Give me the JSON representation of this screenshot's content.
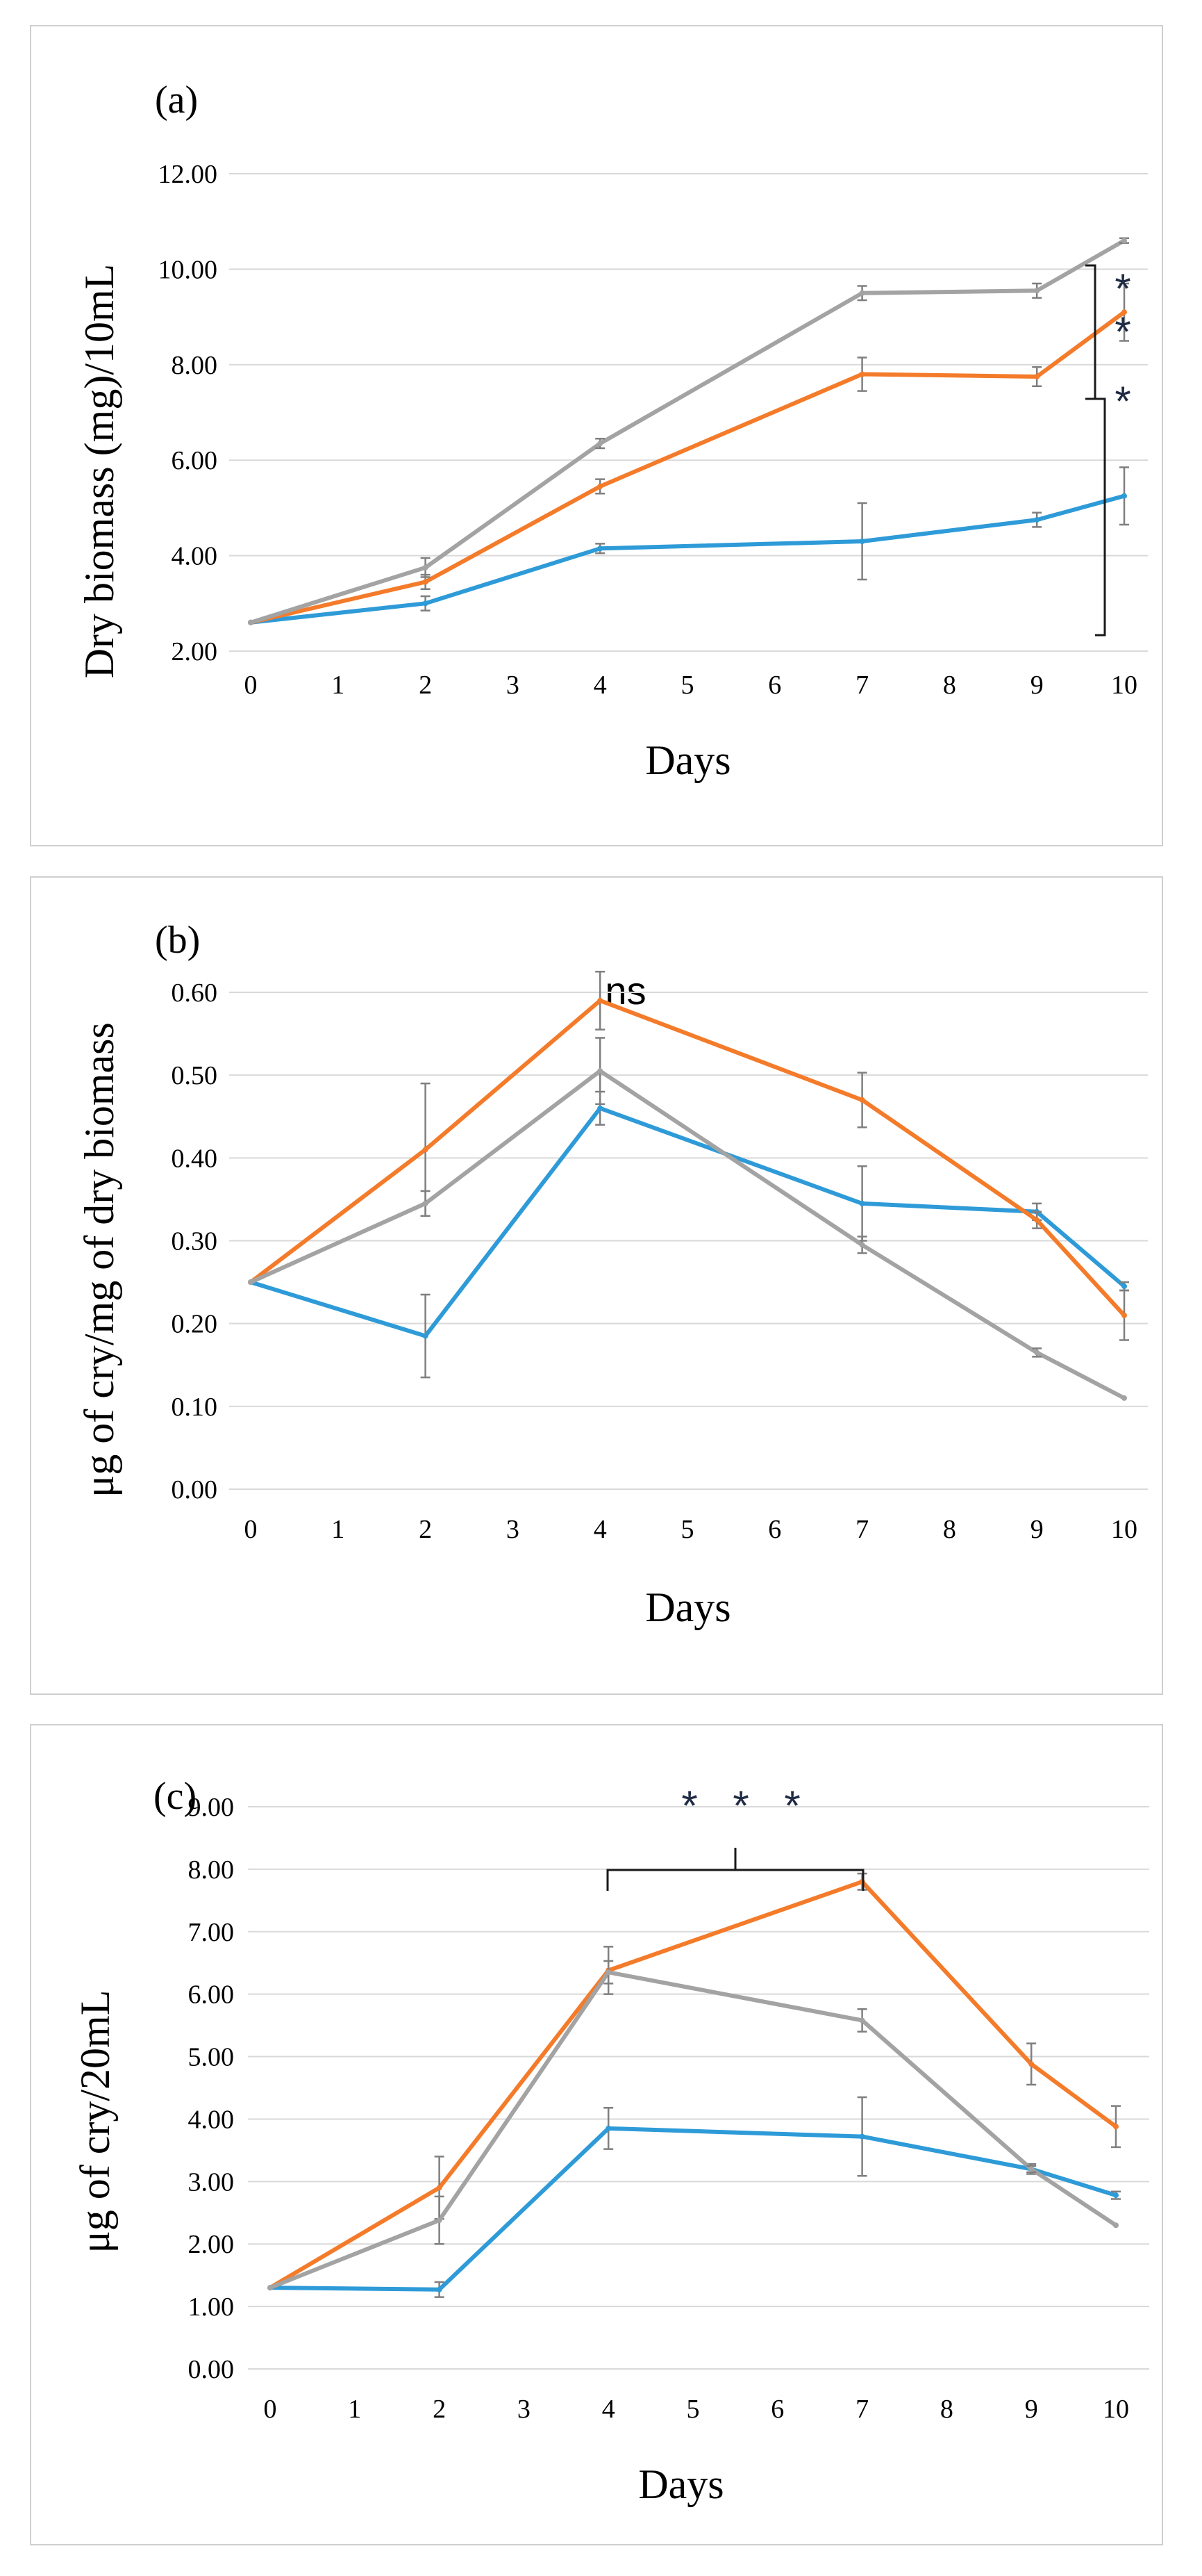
{
  "colors": {
    "blue": "#2e9bd8",
    "orange": "#f47b2a",
    "gray": "#a3a3a3",
    "errorbar": "#7f7f7f"
  },
  "chart_data": [
    {
      "type": "line",
      "panel_label": "(a)",
      "xlabel": "Days",
      "ylabel": "Dry biomass (mg)/10mL",
      "categories": [
        "0",
        "1",
        "2",
        "3",
        "4",
        "5",
        "6",
        "7",
        "8",
        "9",
        "10"
      ],
      "ylim": [
        2.0,
        12.0
      ],
      "yticks": [
        "2.00",
        "4.00",
        "6.00",
        "8.00",
        "10.00",
        "12.00"
      ],
      "grid": true,
      "annotations": [
        "*",
        "*",
        "*"
      ],
      "series": [
        {
          "name": "blue",
          "color": "#2e9bd8",
          "x": [
            0,
            2,
            4,
            7,
            9,
            10
          ],
          "values": [
            2.6,
            3.0,
            4.15,
            4.3,
            4.75,
            5.25
          ],
          "errors": [
            0.0,
            0.15,
            0.1,
            0.8,
            0.15,
            0.6
          ]
        },
        {
          "name": "orange",
          "color": "#f47b2a",
          "x": [
            0,
            2,
            4,
            7,
            9,
            10
          ],
          "values": [
            2.6,
            3.45,
            5.45,
            7.8,
            7.75,
            9.1
          ],
          "errors": [
            0.0,
            0.15,
            0.15,
            0.35,
            0.2,
            0.6
          ]
        },
        {
          "name": "gray",
          "color": "#a3a3a3",
          "x": [
            0,
            2,
            4,
            7,
            9,
            10
          ],
          "values": [
            2.6,
            3.75,
            6.35,
            9.5,
            9.55,
            10.6
          ],
          "errors": [
            0.0,
            0.2,
            0.1,
            0.15,
            0.15,
            0.05
          ]
        }
      ]
    },
    {
      "type": "line",
      "panel_label": "(b)",
      "xlabel": "Days",
      "ylabel": "μg of cry/mg of dry biomass",
      "categories": [
        "0",
        "1",
        "2",
        "3",
        "4",
        "5",
        "6",
        "7",
        "8",
        "9",
        "10"
      ],
      "ylim": [
        0.0,
        0.6
      ],
      "yticks": [
        "0.00",
        "0.10",
        "0.20",
        "0.30",
        "0.40",
        "0.50",
        "0.60"
      ],
      "grid": true,
      "annotations": [
        "ns"
      ],
      "series": [
        {
          "name": "blue",
          "color": "#2e9bd8",
          "x": [
            0,
            2,
            4,
            7,
            9,
            10
          ],
          "values": [
            0.25,
            0.185,
            0.46,
            0.345,
            0.335,
            0.245
          ],
          "errors": [
            0.0,
            0.05,
            0.02,
            0.045,
            0.01,
            0.005
          ]
        },
        {
          "name": "orange",
          "color": "#f47b2a",
          "x": [
            0,
            2,
            4,
            7,
            9,
            10
          ],
          "values": [
            0.25,
            0.41,
            0.59,
            0.47,
            0.325,
            0.21
          ],
          "errors": [
            0.0,
            0.08,
            0.035,
            0.033,
            0.01,
            0.03
          ]
        },
        {
          "name": "gray",
          "color": "#a3a3a3",
          "x": [
            0,
            2,
            4,
            7,
            9,
            10
          ],
          "values": [
            0.25,
            0.345,
            0.505,
            0.295,
            0.165,
            0.11
          ],
          "errors": [
            0.0,
            0.015,
            0.04,
            0.01,
            0.005,
            0.0
          ]
        }
      ]
    },
    {
      "type": "line",
      "panel_label": "(c)",
      "xlabel": "Days",
      "ylabel": "μg of cry/20mL",
      "categories": [
        "0",
        "1",
        "2",
        "3",
        "4",
        "5",
        "6",
        "7",
        "8",
        "9",
        "10"
      ],
      "ylim": [
        0.0,
        9.0
      ],
      "yticks": [
        "0.00",
        "1.00",
        "2.00",
        "3.00",
        "4.00",
        "5.00",
        "6.00",
        "7.00",
        "8.00",
        "9.00"
      ],
      "grid": true,
      "annotations": [
        "*",
        "*",
        "*"
      ],
      "series": [
        {
          "name": "blue",
          "color": "#2e9bd8",
          "x": [
            0,
            2,
            4,
            7,
            9,
            10
          ],
          "values": [
            1.3,
            1.27,
            3.85,
            3.72,
            3.2,
            2.78
          ],
          "errors": [
            0.0,
            0.12,
            0.33,
            0.63,
            0.08,
            0.06
          ]
        },
        {
          "name": "orange",
          "color": "#f47b2a",
          "x": [
            0,
            2,
            4,
            7,
            9,
            10
          ],
          "values": [
            1.3,
            2.9,
            6.38,
            7.8,
            4.88,
            3.88
          ],
          "errors": [
            0.0,
            0.5,
            0.38,
            0.13,
            0.33,
            0.33
          ]
        },
        {
          "name": "gray",
          "color": "#a3a3a3",
          "x": [
            0,
            2,
            4,
            7,
            9,
            10
          ],
          "values": [
            1.3,
            2.38,
            6.35,
            5.58,
            3.2,
            2.3
          ],
          "errors": [
            0.0,
            0.38,
            0.18,
            0.18,
            0.05,
            0.0
          ]
        }
      ]
    }
  ]
}
